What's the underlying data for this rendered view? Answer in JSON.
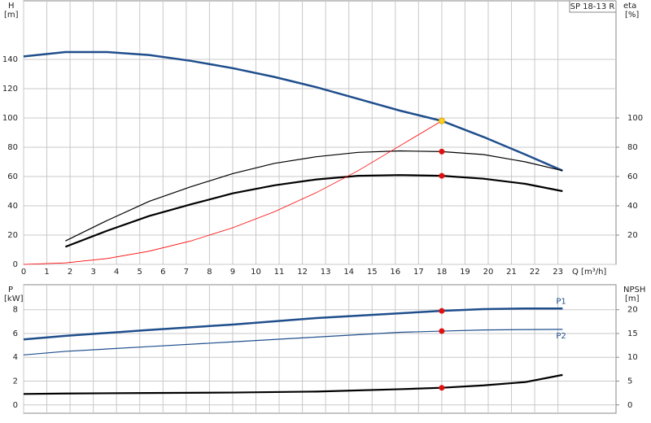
{
  "chart_data": [
    {
      "type": "line",
      "title": "SP 18-13 R",
      "xlabel": "Q [m³/h]",
      "ylabel": "H",
      "yunit": "[m]",
      "y2label": "eta",
      "y2unit": "[%]",
      "xlim": [
        0,
        25.5
      ],
      "xticks": [
        0,
        1,
        2,
        3,
        4,
        5,
        6,
        7,
        8,
        9,
        10,
        11,
        12,
        13,
        14,
        15,
        16,
        17,
        18,
        19,
        20,
        21,
        22,
        23
      ],
      "ylim": [
        0,
        180
      ],
      "yticks": [
        0,
        20,
        40,
        60,
        80,
        100,
        120,
        140
      ],
      "y2lim": [
        0,
        180
      ],
      "y2ticks": [
        20,
        40,
        60,
        80,
        100
      ],
      "grid": true,
      "series": [
        {
          "color": "#1f4e8c",
          "width": 2.5,
          "x": [
            0,
            1.8,
            3.6,
            5.4,
            7.2,
            9,
            10.8,
            12.6,
            14.4,
            16.2,
            18,
            19.8,
            21.6,
            23.2
          ],
          "values": [
            142,
            145,
            145,
            143,
            139,
            134,
            128,
            121,
            113,
            105,
            98,
            87,
            75,
            64
          ]
        },
        {
          "color": "#000000",
          "width": 1.2,
          "axis": "y2",
          "x": [
            1.8,
            3.6,
            5.4,
            7.2,
            9,
            10.8,
            12.6,
            14.4,
            16.2,
            18,
            19.8,
            21.6,
            23.2
          ],
          "values": [
            16,
            30,
            43,
            53,
            62,
            69,
            73.5,
            76.5,
            77.5,
            77,
            75,
            70,
            64
          ]
        },
        {
          "color": "#000000",
          "width": 2.2,
          "axis": "y2",
          "x": [
            1.8,
            3.6,
            5.4,
            7.2,
            9,
            10.8,
            12.6,
            14.4,
            16.2,
            18,
            19.8,
            21.6,
            23.2
          ],
          "values": [
            12,
            23,
            33,
            41,
            48.5,
            54,
            58,
            60.5,
            61,
            60.5,
            58.5,
            55,
            50
          ]
        },
        {
          "color": "#ff0000",
          "width": 0.8,
          "x": [
            0,
            1.8,
            3.6,
            5.4,
            7.2,
            9,
            10.8,
            12.6,
            14.4,
            16.2,
            18
          ],
          "values": [
            0,
            1,
            4,
            9,
            16,
            25,
            36,
            49,
            64,
            81,
            98
          ]
        }
      ],
      "markers": [
        {
          "x": 18,
          "y": 98,
          "color": "#ffd21f"
        },
        {
          "x": 18,
          "y": 77,
          "color": "#e01010",
          "axis": "y2"
        },
        {
          "x": 18,
          "y": 60.5,
          "color": "#e01010",
          "axis": "y2"
        }
      ]
    },
    {
      "type": "line",
      "ylabel": "P",
      "yunit": "[kW]",
      "y2label": "NPSH",
      "y2unit": "[m]",
      "xlim": [
        0,
        25.5
      ],
      "xticks": [
        0,
        1,
        2,
        3,
        4,
        5,
        6,
        7,
        8,
        9,
        10,
        11,
        12,
        13,
        14,
        15,
        16,
        17,
        18,
        19,
        20,
        21,
        22,
        23
      ],
      "ylim": [
        -0.7,
        10.1
      ],
      "yticks": [
        0,
        2,
        4,
        6,
        8
      ],
      "y2lim": [
        -1.75,
        25.25
      ],
      "y2ticks": [
        0,
        5,
        10,
        15,
        20
      ],
      "grid": true,
      "series": [
        {
          "name": "P1",
          "color": "#1f4e8c",
          "width": 2.5,
          "x": [
            0,
            1.8,
            5.4,
            9,
            12.6,
            16.2,
            18,
            19.8,
            21.6,
            23.2
          ],
          "values": [
            5.5,
            5.8,
            6.3,
            6.75,
            7.3,
            7.7,
            7.9,
            8.05,
            8.1,
            8.1
          ]
        },
        {
          "name": "P2",
          "color": "#1f4e8c",
          "width": 1.2,
          "x": [
            0,
            1.8,
            5.4,
            9,
            12.6,
            16.2,
            18,
            19.8,
            23.2
          ],
          "values": [
            4.2,
            4.5,
            4.9,
            5.3,
            5.7,
            6.1,
            6.2,
            6.3,
            6.35
          ]
        },
        {
          "color": "#000000",
          "width": 2.2,
          "axis": "y2",
          "x": [
            0,
            1.8,
            5.4,
            9,
            12.6,
            16.2,
            18,
            19.8,
            21.6,
            23.2
          ],
          "values": [
            2.3,
            2.4,
            2.5,
            2.6,
            2.8,
            3.3,
            3.6,
            4.1,
            4.8,
            6.3
          ]
        }
      ],
      "markers": [
        {
          "x": 18,
          "y": 7.9,
          "color": "#e01010"
        },
        {
          "x": 18,
          "y": 6.2,
          "color": "#e01010"
        },
        {
          "x": 18,
          "y": 3.6,
          "color": "#e01010",
          "axis": "y2"
        }
      ]
    }
  ]
}
